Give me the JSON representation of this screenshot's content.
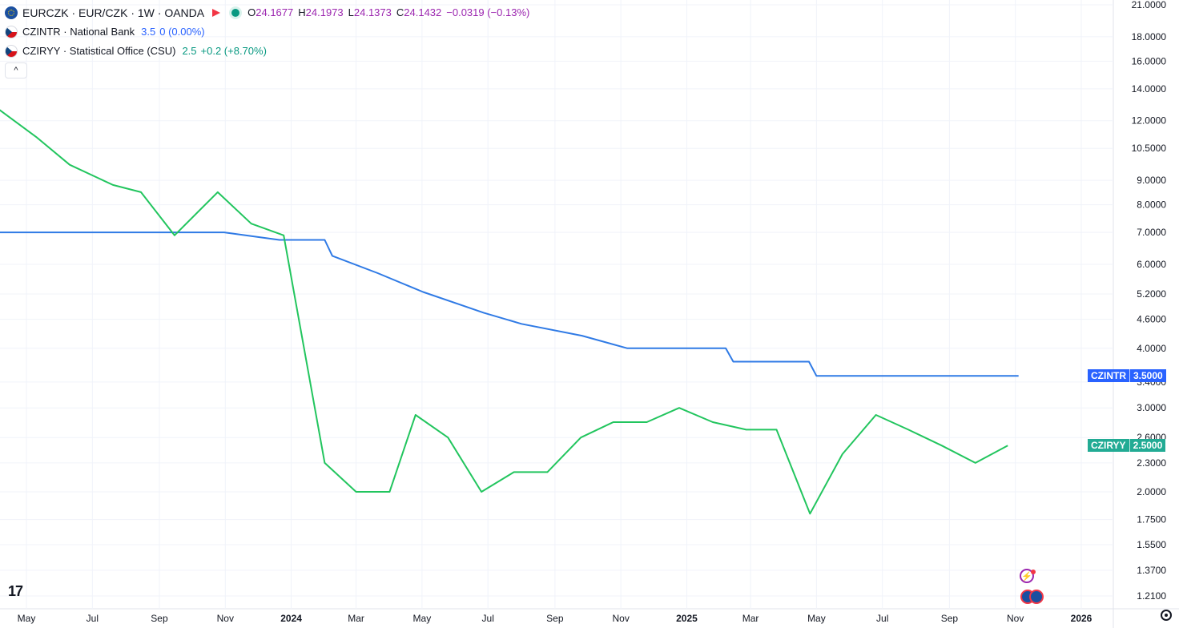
{
  "legend": {
    "main": {
      "symbol": "EURCZK · EUR/CZK · 1W · OANDA",
      "o_key": "O",
      "o_val": "24.1677",
      "h_key": "H",
      "h_val": "24.1973",
      "l_key": "L",
      "l_val": "24.1373",
      "c_key": "C",
      "c_val": "24.1432",
      "change": "−0.0319 (−0.13%)",
      "icon": "eu-flag-icon"
    },
    "s1": {
      "name": "CZINTR · National Bank",
      "value": "3.5",
      "change": "0 (0.00%)",
      "icon": "cz-flag-icon"
    },
    "s2": {
      "name": "CZIRYY · Statistical Office (CSU)",
      "value": "2.5",
      "change": "+0.2 (+8.70%)",
      "icon": "cz-flag-icon"
    },
    "collapse_label": "^"
  },
  "tags": {
    "czintr": {
      "name": "CZINTR",
      "value": "3.5000",
      "color": "#2962ff"
    },
    "cziryy": {
      "name": "CZIRYY",
      "value": "2.5000",
      "color": "#22ab94"
    }
  },
  "watermark": "17",
  "chart_data": {
    "type": "line",
    "scale": "log",
    "grid": true,
    "x_tick_labels": [
      "May",
      "Jul",
      "Sep",
      "Nov",
      "2024",
      "Mar",
      "May",
      "Jul",
      "Sep",
      "Nov",
      "2025",
      "Mar",
      "May",
      "Jul",
      "Sep",
      "Nov",
      "2026"
    ],
    "y_tick_labels": [
      "21.0000",
      "18.0000",
      "16.0000",
      "14.0000",
      "12.0000",
      "10.5000",
      "9.0000",
      "8.0000",
      "7.0000",
      "6.0000",
      "5.2000",
      "4.6000",
      "4.0000",
      "3.4000",
      "3.0000",
      "2.6000",
      "2.3000",
      "2.0000",
      "1.7500",
      "1.5500",
      "1.3700",
      "1.2100"
    ],
    "y_ticks": [
      21,
      18,
      16,
      14,
      12,
      10.5,
      9,
      8,
      7,
      6,
      5.2,
      4.6,
      4,
      3.4,
      3,
      2.6,
      2.3,
      2,
      1.75,
      1.55,
      1.37,
      1.21
    ],
    "series": [
      {
        "name": "CZINTR",
        "color": "#2f7ae5",
        "points": [
          [
            "2023-03-15",
            7.0
          ],
          [
            "2023-10-31",
            7.0
          ],
          [
            "2023-12-21",
            6.75
          ],
          [
            "2024-02-01",
            6.75
          ],
          [
            "2024-02-08",
            6.25
          ],
          [
            "2024-03-21",
            5.75
          ],
          [
            "2024-05-02",
            5.25
          ],
          [
            "2024-06-27",
            4.75
          ],
          [
            "2024-08-01",
            4.5
          ],
          [
            "2024-09-26",
            4.25
          ],
          [
            "2024-11-07",
            4.0
          ],
          [
            "2025-02-06",
            4.0
          ],
          [
            "2025-02-13",
            3.75
          ],
          [
            "2025-04-24",
            3.75
          ],
          [
            "2025-05-01",
            3.5
          ],
          [
            "2025-11-04",
            3.5
          ]
        ]
      },
      {
        "name": "CZIRYY",
        "color": "#22c55e",
        "points": [
          [
            "2023-03-15",
            15.0
          ],
          [
            "2023-04-05",
            12.7
          ],
          [
            "2023-05-10",
            11.1
          ],
          [
            "2023-06-10",
            9.7
          ],
          [
            "2023-07-20",
            8.8
          ],
          [
            "2023-08-15",
            8.5
          ],
          [
            "2023-09-15",
            6.9
          ],
          [
            "2023-10-25",
            8.5
          ],
          [
            "2023-11-25",
            7.3
          ],
          [
            "2023-12-25",
            6.9
          ],
          [
            "2024-02-01",
            2.3
          ],
          [
            "2024-03-01",
            2.0
          ],
          [
            "2024-04-01",
            2.0
          ],
          [
            "2024-04-25",
            2.9
          ],
          [
            "2024-05-25",
            2.6
          ],
          [
            "2024-06-25",
            2.0
          ],
          [
            "2024-07-25",
            2.2
          ],
          [
            "2024-08-25",
            2.2
          ],
          [
            "2024-09-25",
            2.6
          ],
          [
            "2024-10-25",
            2.8
          ],
          [
            "2024-11-25",
            2.8
          ],
          [
            "2024-12-25",
            3.0
          ],
          [
            "2025-01-25",
            2.8
          ],
          [
            "2025-02-25",
            2.7
          ],
          [
            "2025-03-25",
            2.7
          ],
          [
            "2025-04-25",
            1.8
          ],
          [
            "2025-05-25",
            2.4
          ],
          [
            "2025-06-25",
            2.9
          ],
          [
            "2025-07-25",
            2.7
          ],
          [
            "2025-08-25",
            2.5
          ],
          [
            "2025-09-25",
            2.3
          ],
          [
            "2025-10-25",
            2.5
          ]
        ]
      }
    ]
  }
}
